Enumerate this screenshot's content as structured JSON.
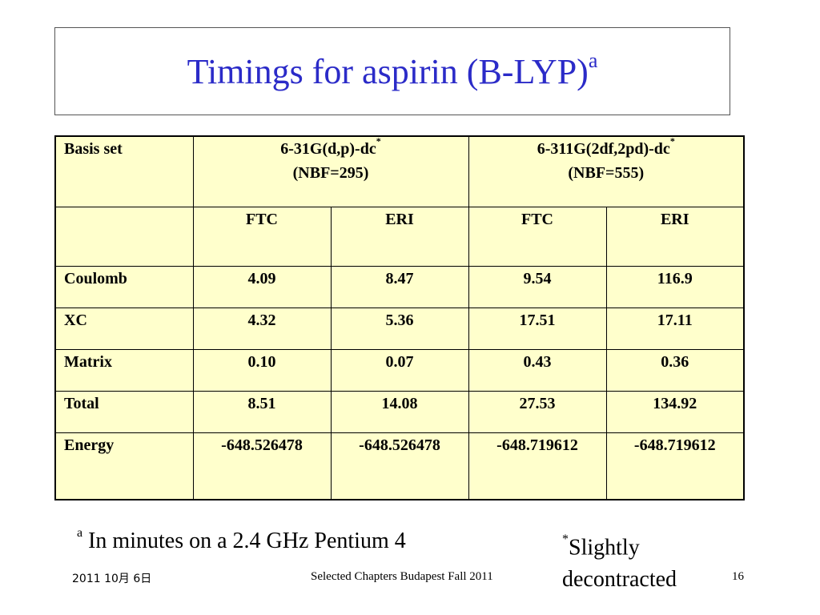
{
  "title": {
    "text": "Timings for aspirin (B-LYP)",
    "superscript": "a"
  },
  "table": {
    "header": {
      "basis_label": "Basis set",
      "set1_name": "6-31G(d,p)-dc",
      "set1_mark": "*",
      "set1_nbf": "(NBF=295)",
      "set2_name": "6-311G(2df,2pd)-dc",
      "set2_mark": "*",
      "set2_nbf": "(NBF=555)"
    },
    "subheader": [
      "FTC",
      "ERI",
      "FTC",
      "ERI"
    ],
    "rows": [
      {
        "label": "Coulomb",
        "values": [
          "4.09",
          "8.47",
          "9.54",
          "116.9"
        ]
      },
      {
        "label": "XC",
        "values": [
          "4.32",
          "5.36",
          "17.51",
          "17.11"
        ]
      },
      {
        "label": "Matrix",
        "values": [
          "0.10",
          "0.07",
          "0.43",
          "0.36"
        ]
      },
      {
        "label": "Total",
        "values": [
          "8.51",
          "14.08",
          "27.53",
          "134.92"
        ]
      },
      {
        "label": "Energy",
        "values": [
          "-648.526478",
          "-648.526478",
          "-648.719612",
          "-648.719612"
        ]
      }
    ]
  },
  "footnotes": {
    "a_mark": "a",
    "a_text": "In minutes on a 2.4 GHz Pentium 4",
    "star_mark": "*",
    "star_text_1": "Slightly",
    "star_text_2": "decontracted"
  },
  "footer": {
    "date": "2011  10月  6日",
    "center": "Selected Chapters Budapest Fall 2011",
    "page": "16"
  },
  "colors": {
    "title": "#2b2bc8",
    "table_bg": "#ffffcc"
  }
}
